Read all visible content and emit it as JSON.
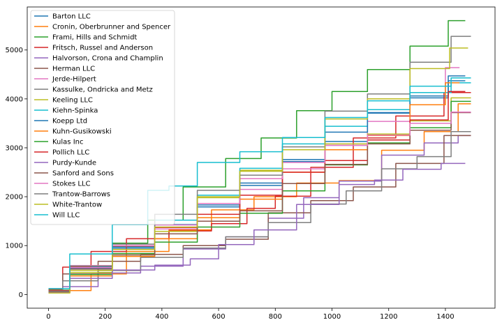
{
  "chart_data": {
    "type": "line",
    "title": "",
    "xlabel": "",
    "ylabel": "",
    "xlim": [
      -75,
      1575
    ],
    "ylim": [
      -280,
      5880
    ],
    "xticks": [
      0,
      200,
      400,
      600,
      800,
      1000,
      1200,
      1400
    ],
    "yticks": [
      0,
      1000,
      2000,
      3000,
      4000,
      5000
    ],
    "grid": false,
    "legend_position": "top-left",
    "series": [
      {
        "name": "Barton LLC",
        "color": "#1f77b4",
        "points": [
          [
            0,
            60
          ],
          [
            150,
            560
          ],
          [
            300,
            960
          ],
          [
            450,
            1430
          ],
          [
            600,
            1830
          ],
          [
            750,
            2230
          ],
          [
            900,
            2720
          ],
          [
            1050,
            3130
          ],
          [
            1200,
            3720
          ],
          [
            1350,
            4020
          ],
          [
            1470,
            4370
          ]
        ]
      },
      {
        "name": "Cronin, Oberbrunner and Spencer",
        "color": "#ff7f0e",
        "points": [
          [
            50,
            30
          ],
          [
            100,
            80
          ],
          [
            200,
            420
          ],
          [
            350,
            880
          ],
          [
            500,
            1320
          ],
          [
            650,
            1730
          ],
          [
            800,
            2000
          ],
          [
            950,
            2280
          ],
          [
            1100,
            2330
          ],
          [
            1250,
            2950
          ],
          [
            1400,
            3330
          ],
          [
            1490,
            3900
          ]
        ]
      },
      {
        "name": "Frami, Hills and Schmidt",
        "color": "#2ca02c",
        "points": [
          [
            0,
            90
          ],
          [
            150,
            590
          ],
          [
            300,
            1050
          ],
          [
            400,
            1520
          ],
          [
            550,
            2200
          ],
          [
            700,
            2780
          ],
          [
            800,
            3200
          ],
          [
            950,
            3760
          ],
          [
            1050,
            4150
          ],
          [
            1200,
            4600
          ],
          [
            1350,
            5080
          ],
          [
            1470,
            5600
          ]
        ]
      },
      {
        "name": "Fritsch, Russel and Anderson",
        "color": "#d62728",
        "points": [
          [
            0,
            110
          ],
          [
            100,
            560
          ],
          [
            200,
            880
          ],
          [
            350,
            1140
          ],
          [
            500,
            1300
          ],
          [
            650,
            1450
          ],
          [
            750,
            1760
          ],
          [
            850,
            2010
          ],
          [
            1000,
            2600
          ],
          [
            1150,
            3200
          ],
          [
            1300,
            3650
          ],
          [
            1490,
            4130
          ]
        ]
      },
      {
        "name": "Halvorson, Crona and Champlin",
        "color": "#9467bd",
        "points": [
          [
            0,
            60
          ],
          [
            100,
            160
          ],
          [
            250,
            440
          ],
          [
            400,
            580
          ],
          [
            550,
            930
          ],
          [
            700,
            1180
          ],
          [
            850,
            1560
          ],
          [
            950,
            1980
          ],
          [
            1100,
            2320
          ],
          [
            1250,
            2850
          ],
          [
            1400,
            3100
          ],
          [
            1490,
            3250
          ]
        ]
      },
      {
        "name": "Herman LLC",
        "color": "#8c564b",
        "points": [
          [
            0,
            70
          ],
          [
            100,
            420
          ],
          [
            250,
            680
          ],
          [
            400,
            820
          ],
          [
            550,
            1000
          ],
          [
            700,
            1130
          ],
          [
            850,
            1670
          ],
          [
            1000,
            1920
          ],
          [
            1150,
            2200
          ],
          [
            1300,
            2680
          ],
          [
            1490,
            3250
          ]
        ]
      },
      {
        "name": "Jerde-Hilpert",
        "color": "#e377c2",
        "points": [
          [
            0,
            80
          ],
          [
            150,
            550
          ],
          [
            300,
            930
          ],
          [
            450,
            1340
          ],
          [
            600,
            1790
          ],
          [
            750,
            2150
          ],
          [
            900,
            2570
          ],
          [
            1050,
            3050
          ],
          [
            1200,
            3540
          ],
          [
            1350,
            4130
          ],
          [
            1450,
            4640
          ]
        ]
      },
      {
        "name": "Kassulke, Ondricka and Metz",
        "color": "#7f7f7f",
        "points": [
          [
            0,
            60
          ],
          [
            100,
            280
          ],
          [
            250,
            490
          ],
          [
            400,
            760
          ],
          [
            550,
            950
          ],
          [
            700,
            1180
          ],
          [
            850,
            1470
          ],
          [
            1000,
            1850
          ],
          [
            1100,
            2120
          ],
          [
            1250,
            2570
          ],
          [
            1350,
            2820
          ],
          [
            1490,
            3330
          ]
        ]
      },
      {
        "name": "Keeling LLC",
        "color": "#bcbd22",
        "points": [
          [
            0,
            40
          ],
          [
            150,
            450
          ],
          [
            300,
            810
          ],
          [
            450,
            1290
          ],
          [
            600,
            1980
          ],
          [
            750,
            2540
          ],
          [
            900,
            2960
          ],
          [
            1050,
            3080
          ],
          [
            1200,
            3280
          ],
          [
            1350,
            3550
          ],
          [
            1490,
            4020
          ]
        ]
      },
      {
        "name": "Kiehn-Spinka",
        "color": "#17becf",
        "points": [
          [
            0,
            50
          ],
          [
            150,
            520
          ],
          [
            300,
            980
          ],
          [
            450,
            1520
          ],
          [
            600,
            2030
          ],
          [
            750,
            2580
          ],
          [
            900,
            3080
          ],
          [
            1050,
            3440
          ],
          [
            1200,
            3780
          ],
          [
            1350,
            4130
          ],
          [
            1490,
            4330
          ]
        ]
      },
      {
        "name": "Koepp Ltd",
        "color": "#1f77b4",
        "points": [
          [
            0,
            40
          ],
          [
            150,
            530
          ],
          [
            300,
            930
          ],
          [
            450,
            1420
          ],
          [
            600,
            1790
          ],
          [
            750,
            2280
          ],
          [
            900,
            2760
          ],
          [
            1050,
            3320
          ],
          [
            1200,
            3710
          ],
          [
            1350,
            4060
          ],
          [
            1470,
            4470
          ]
        ]
      },
      {
        "name": "Kuhn-Gusikowski",
        "color": "#ff7f0e",
        "points": [
          [
            0,
            40
          ],
          [
            150,
            380
          ],
          [
            300,
            780
          ],
          [
            450,
            1140
          ],
          [
            600,
            1570
          ],
          [
            750,
            1950
          ],
          [
            900,
            2500
          ],
          [
            1050,
            2960
          ],
          [
            1200,
            3250
          ],
          [
            1350,
            3880
          ],
          [
            1450,
            4330
          ]
        ]
      },
      {
        "name": "Kulas Inc",
        "color": "#2ca02c",
        "points": [
          [
            0,
            70
          ],
          [
            150,
            410
          ],
          [
            300,
            840
          ],
          [
            450,
            1070
          ],
          [
            600,
            1380
          ],
          [
            750,
            1660
          ],
          [
            900,
            2120
          ],
          [
            1050,
            2650
          ],
          [
            1200,
            3100
          ],
          [
            1350,
            3410
          ],
          [
            1490,
            3950
          ]
        ]
      },
      {
        "name": "Pollich LLC",
        "color": "#d62728",
        "points": [
          [
            0,
            80
          ],
          [
            150,
            580
          ],
          [
            300,
            990
          ],
          [
            450,
            1370
          ],
          [
            600,
            1640
          ],
          [
            750,
            2030
          ],
          [
            900,
            2500
          ],
          [
            1050,
            2740
          ],
          [
            1200,
            3160
          ],
          [
            1350,
            3570
          ],
          [
            1470,
            4150
          ]
        ]
      },
      {
        "name": "Purdy-Kunde",
        "color": "#9467bd",
        "points": [
          [
            0,
            50
          ],
          [
            150,
            330
          ],
          [
            300,
            500
          ],
          [
            450,
            600
          ],
          [
            550,
            730
          ],
          [
            650,
            1020
          ],
          [
            800,
            1320
          ],
          [
            950,
            1840
          ],
          [
            1100,
            2250
          ],
          [
            1200,
            2340
          ],
          [
            1300,
            2560
          ],
          [
            1470,
            2680
          ]
        ]
      },
      {
        "name": "Sanford and Sons",
        "color": "#8c564b",
        "points": [
          [
            0,
            60
          ],
          [
            150,
            520
          ],
          [
            300,
            810
          ],
          [
            450,
            1240
          ],
          [
            600,
            1500
          ],
          [
            750,
            1710
          ],
          [
            900,
            2270
          ],
          [
            1050,
            2660
          ],
          [
            1200,
            3080
          ],
          [
            1350,
            3360
          ],
          [
            1490,
            3720
          ]
        ]
      },
      {
        "name": "Stokes LLC",
        "color": "#e377c2",
        "points": [
          [
            0,
            30
          ],
          [
            150,
            590
          ],
          [
            300,
            1000
          ],
          [
            450,
            1420
          ],
          [
            600,
            1860
          ],
          [
            750,
            2370
          ],
          [
            900,
            2700
          ],
          [
            1050,
            3050
          ],
          [
            1200,
            3260
          ],
          [
            1350,
            3500
          ],
          [
            1490,
            3730
          ]
        ]
      },
      {
        "name": "Trantow-Barrows",
        "color": "#7f7f7f",
        "points": [
          [
            0,
            70
          ],
          [
            150,
            580
          ],
          [
            300,
            1030
          ],
          [
            450,
            1640
          ],
          [
            600,
            2130
          ],
          [
            750,
            2440
          ],
          [
            900,
            3020
          ],
          [
            1050,
            3750
          ],
          [
            1200,
            4100
          ],
          [
            1350,
            4750
          ],
          [
            1490,
            5280
          ]
        ]
      },
      {
        "name": "White-Trantow",
        "color": "#bcbd22",
        "points": [
          [
            0,
            30
          ],
          [
            150,
            490
          ],
          [
            300,
            920
          ],
          [
            450,
            1380
          ],
          [
            600,
            2000
          ],
          [
            750,
            2520
          ],
          [
            900,
            2960
          ],
          [
            1050,
            3590
          ],
          [
            1200,
            4000
          ],
          [
            1350,
            4620
          ],
          [
            1480,
            5040
          ]
        ]
      },
      {
        "name": "Will LLC",
        "color": "#17becf",
        "points": [
          [
            0,
            120
          ],
          [
            150,
            830
          ],
          [
            300,
            1430
          ],
          [
            400,
            2130
          ],
          [
            450,
            2220
          ],
          [
            600,
            2700
          ],
          [
            750,
            2920
          ],
          [
            900,
            3210
          ],
          [
            1050,
            3620
          ],
          [
            1200,
            3960
          ],
          [
            1350,
            4260
          ],
          [
            1490,
            4430
          ]
        ]
      }
    ]
  }
}
